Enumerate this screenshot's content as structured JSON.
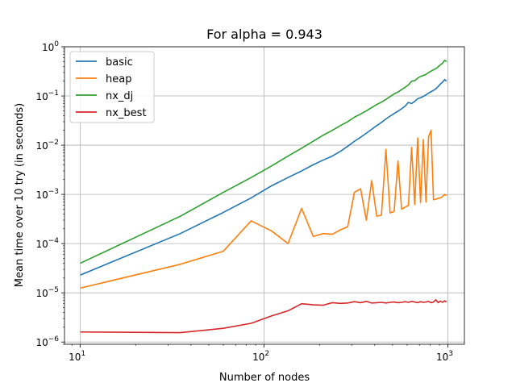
{
  "chart_data": {
    "type": "line",
    "title": "For alpha = 0.943",
    "xlabel": "Number of nodes",
    "ylabel": "Mean time over 10 try (in seconds)",
    "xscale": "log",
    "yscale": "log",
    "xlim": [
      8.2,
      1230
    ],
    "ylim": [
      9e-07,
      1.0
    ],
    "grid": true,
    "legend_position": "top-left",
    "xticks": [
      {
        "value": 10,
        "base": "10",
        "exp": "1"
      },
      {
        "value": 100,
        "base": "10",
        "exp": "2"
      },
      {
        "value": 1000,
        "base": "10",
        "exp": "3"
      }
    ],
    "yticks": [
      {
        "value": 1e-06,
        "base": "10",
        "exp": "−6"
      },
      {
        "value": 1e-05,
        "base": "10",
        "exp": "−5"
      },
      {
        "value": 0.0001,
        "base": "10",
        "exp": "−4"
      },
      {
        "value": 0.001,
        "base": "10",
        "exp": "−3"
      },
      {
        "value": 0.01,
        "base": "10",
        "exp": "−2"
      },
      {
        "value": 0.1,
        "base": "10",
        "exp": "−1"
      },
      {
        "value": 1,
        "base": "10",
        "exp": "0"
      }
    ],
    "series": [
      {
        "name": "basic",
        "color": "#1f77b4",
        "x": [
          10,
          35,
          60,
          85,
          110,
          135,
          160,
          185,
          210,
          235,
          260,
          285,
          310,
          335,
          360,
          385,
          410,
          435,
          460,
          485,
          510,
          535,
          560,
          585,
          610,
          635,
          660,
          685,
          710,
          735,
          760,
          785,
          810,
          835,
          860,
          885,
          910,
          935,
          960,
          985
        ],
        "y": [
          2.3e-05,
          0.00016,
          0.00043,
          0.00085,
          0.0015,
          0.0022,
          0.003,
          0.004,
          0.005,
          0.006,
          0.0075,
          0.0095,
          0.012,
          0.0145,
          0.0175,
          0.021,
          0.025,
          0.029,
          0.034,
          0.039,
          0.044,
          0.049,
          0.055,
          0.062,
          0.074,
          0.07,
          0.078,
          0.088,
          0.092,
          0.098,
          0.105,
          0.115,
          0.122,
          0.13,
          0.14,
          0.155,
          0.175,
          0.19,
          0.215,
          0.2
        ]
      },
      {
        "name": "heap",
        "color": "#ff7f0e",
        "x": [
          10,
          35,
          60,
          85,
          110,
          135,
          160,
          185,
          210,
          235,
          260,
          285,
          310,
          335,
          360,
          385,
          410,
          435,
          460,
          485,
          510,
          535,
          560,
          585,
          610,
          635,
          660,
          685,
          710,
          735,
          760,
          785,
          810,
          835,
          860,
          885,
          910,
          935,
          960,
          985
        ],
        "y": [
          1.25e-05,
          3.8e-05,
          7e-05,
          0.00029,
          0.00018,
          0.0001,
          0.00052,
          0.00014,
          0.00016,
          0.000155,
          0.00019,
          0.00022,
          0.0011,
          0.0013,
          0.0003,
          0.0019,
          0.00036,
          0.00038,
          0.0082,
          0.00042,
          0.00045,
          0.0048,
          0.0005,
          0.00055,
          0.0006,
          0.009,
          0.00062,
          0.014,
          0.00068,
          0.013,
          0.0007,
          0.015,
          0.02,
          0.00078,
          0.0008,
          0.00083,
          0.00085,
          0.0009,
          0.001,
          0.00095
        ]
      },
      {
        "name": "nx_dj",
        "color": "#2ca02c",
        "x": [
          10,
          35,
          60,
          85,
          110,
          135,
          160,
          185,
          210,
          235,
          260,
          285,
          310,
          335,
          360,
          385,
          410,
          435,
          460,
          485,
          510,
          535,
          560,
          585,
          610,
          635,
          660,
          685,
          710,
          735,
          760,
          785,
          810,
          835,
          860,
          885,
          910,
          935,
          960,
          985
        ],
        "y": [
          4e-05,
          0.00036,
          0.0011,
          0.0022,
          0.0038,
          0.006,
          0.0087,
          0.012,
          0.016,
          0.02,
          0.025,
          0.03,
          0.037,
          0.043,
          0.05,
          0.058,
          0.067,
          0.075,
          0.085,
          0.097,
          0.11,
          0.12,
          0.135,
          0.15,
          0.168,
          0.2,
          0.205,
          0.23,
          0.25,
          0.26,
          0.275,
          0.3,
          0.32,
          0.34,
          0.36,
          0.39,
          0.43,
          0.46,
          0.53,
          0.5
        ]
      },
      {
        "name": "nx_best",
        "color": "#d62728",
        "x": [
          10,
          35,
          60,
          85,
          110,
          135,
          160,
          185,
          210,
          235,
          260,
          285,
          310,
          335,
          360,
          385,
          410,
          435,
          460,
          485,
          510,
          535,
          560,
          585,
          610,
          635,
          660,
          685,
          710,
          735,
          760,
          785,
          810,
          835,
          860,
          885,
          910,
          935,
          960,
          985
        ],
        "y": [
          1.6e-06,
          1.55e-06,
          1.9e-06,
          2.4e-06,
          3.4e-06,
          4.3e-06,
          6e-06,
          5.7e-06,
          5.6e-06,
          6.3e-06,
          6.1e-06,
          6.2e-06,
          6.6e-06,
          6.3e-06,
          6.7e-06,
          6.2e-06,
          6.3e-06,
          6.4e-06,
          6.2e-06,
          6.4e-06,
          6.5e-06,
          6.3e-06,
          6.4e-06,
          6.6e-06,
          6.4e-06,
          6.7e-06,
          6.5e-06,
          6.3e-06,
          6.6e-06,
          6.4e-06,
          6.5e-06,
          6.7e-06,
          6.3e-06,
          6.5e-06,
          7.2e-06,
          6.3e-06,
          6.8e-06,
          6.4e-06,
          6.9e-06,
          6.5e-06
        ]
      }
    ]
  }
}
